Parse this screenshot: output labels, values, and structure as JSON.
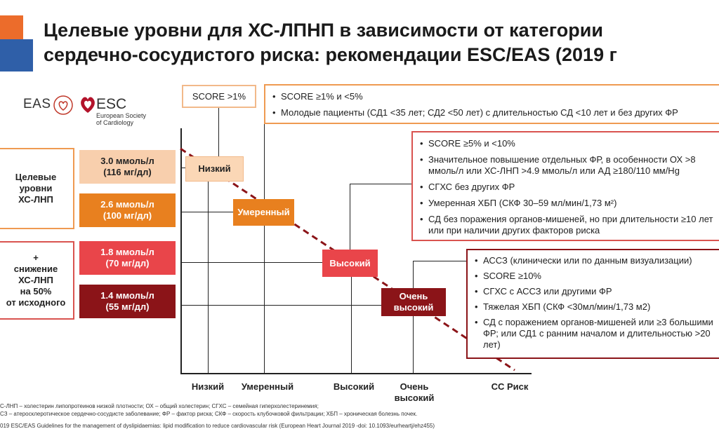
{
  "header": {
    "title_line1": "Целевые уровни для ХС-ЛПНП в зависимости от категории",
    "title_line2": "сердечно-сосудистого риска: рекомендации ESC/EAS (2019 г",
    "accent_colors": [
      "#ec6c2b",
      "#2f5fa8"
    ]
  },
  "logos": {
    "eas": "EAS",
    "esc": "ESC",
    "esc_sub_line1": "European Society",
    "esc_sub_line2": "of Cardiology"
  },
  "left_groups": [
    {
      "text_line1": "Целевые",
      "text_line2": "уровни",
      "text_line3": "ХС-ЛНП"
    },
    {
      "text_line1": "+",
      "text_line2": "снижение",
      "text_line3": "ХС-ЛНП",
      "text_line4": "на 50%",
      "text_line5": "от исходного"
    }
  ],
  "targets": [
    {
      "line1": "3.0 ммоль/л",
      "line2": "(116 мг/дл)",
      "color": "#f8cfad"
    },
    {
      "line1": "2.6 ммоль/л",
      "line2": "(100 мг/дл)",
      "color": "#e8801f"
    },
    {
      "line1": "1.8 ммоль/л",
      "line2": "(70 мг/дл)",
      "color": "#e9454a"
    },
    {
      "line1": "1.4 ммоль/л",
      "line2": "(55 мг/дл)",
      "color": "#8b1418"
    }
  ],
  "risk_boxes": [
    {
      "line1": "Низкий",
      "line2": ""
    },
    {
      "line1": "Умеренный",
      "line2": ""
    },
    {
      "line1": "Высокий",
      "line2": ""
    },
    {
      "line1": "Очень",
      "line2": "высокий"
    }
  ],
  "score_label": "SCORE >1%",
  "info_low_moderate": [
    "SCORE ≥1% и <5%",
    "Молодые пациенты  (СД1 <35 лет; СД2 <50 лет) с длительностью СД <10 лет и без других ФР"
  ],
  "info_high": [
    "SCORE ≥5% и <10%",
    "Значительное повышение отдельных ФР, в особенности ОХ >8 ммоль/л или ХС-ЛНП >4.9 ммоль/л или АД ≥180/110 мм/Hg",
    "СГХС без других ФР",
    "Умеренная ХБП (СКФ 30–59 мл/мин/1,73 м²)",
    "СД без поражения органов-мишеней, но при длительности ≥10 лет или при наличии других факторов риска"
  ],
  "info_very_high": [
    "АССЗ (клинически или по данным визуализации)",
    "SCORE ≥10%",
    "СГХС с АССЗ или другими ФР",
    "Тяжелая ХБП (СКФ <30мл/мин/1,73 м2)",
    "СД с поражением органов-мишеней или ≥3 большими ФР; или СД1 с ранним началом и длительностью >20 лет)"
  ],
  "x_axis": {
    "labels": [
      {
        "line1": "Низкий",
        "line2": ""
      },
      {
        "line1": "Умеренный",
        "line2": ""
      },
      {
        "line1": "Высокий",
        "line2": ""
      },
      {
        "line1": "Очень",
        "line2": "высокий"
      }
    ],
    "axis_title": "СС Риск"
  },
  "footnotes": {
    "line1": "С-ЛНП – холестерин липопротеинов низкой плотности; ОХ – общий холестерин; СГХС – семейная гиперхолестеринемия;",
    "line2": "СЗ – атеросклеротическое сердечно-сосудисте заболевание; ФР – фактор риска; СКФ – скорость клубочковой фильтрации; ХБП – хроническая болезнь почек.",
    "line3": "019 ESC/EAS Guidelines for the management of dyslipidaemias: lipid modification to reduce cardiovascular risk (European Heart Journal 2019 -doi: 10.1093/eurheartj/ehz455)"
  }
}
